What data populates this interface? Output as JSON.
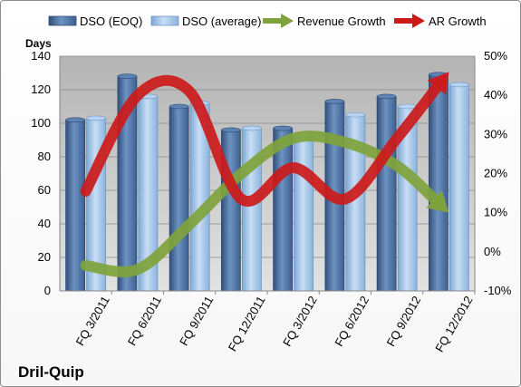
{
  "chart_data": {
    "type": "bar",
    "title": "",
    "brand_label": "Dril-Quip",
    "y_left_label": "Days",
    "y_left_lim": [
      0,
      140
    ],
    "y_left_ticks": [
      "0",
      "20",
      "40",
      "60",
      "80",
      "100",
      "120",
      "140"
    ],
    "y_right_lim": [
      -10,
      50
    ],
    "y_right_ticks": [
      "-10%",
      "0%",
      "10%",
      "20%",
      "30%",
      "40%",
      "50%"
    ],
    "categories": [
      "FQ 3/2011",
      "FQ 6/2011",
      "FQ 9/2011",
      "FQ 12/2011",
      "FQ 3/2012",
      "FQ 6/2012",
      "FQ 9/2012",
      "FQ 12/2012"
    ],
    "grid": "horizontal",
    "legend_position": "top",
    "bar_series": [
      {
        "name": "DSO (EOQ)",
        "color": "#4a6f9f",
        "values": [
          102,
          128,
          110,
          96,
          97,
          113,
          116,
          129
        ]
      },
      {
        "name": "DSO (average)",
        "color": "#9bc0e6",
        "values": [
          103,
          116,
          112,
          97,
          93,
          105,
          110,
          123
        ]
      }
    ],
    "line_series": [
      {
        "name": "Revenue Growth",
        "color": "#7fa33b",
        "axis": "right",
        "values": [
          -3.5,
          -4.5,
          7,
          20,
          29,
          28,
          22,
          10
        ]
      },
      {
        "name": "AR Growth",
        "color": "#cc1a1a",
        "axis": "right",
        "values": [
          15.5,
          40,
          41,
          13.5,
          21.5,
          13.5,
          29,
          46
        ]
      }
    ]
  }
}
